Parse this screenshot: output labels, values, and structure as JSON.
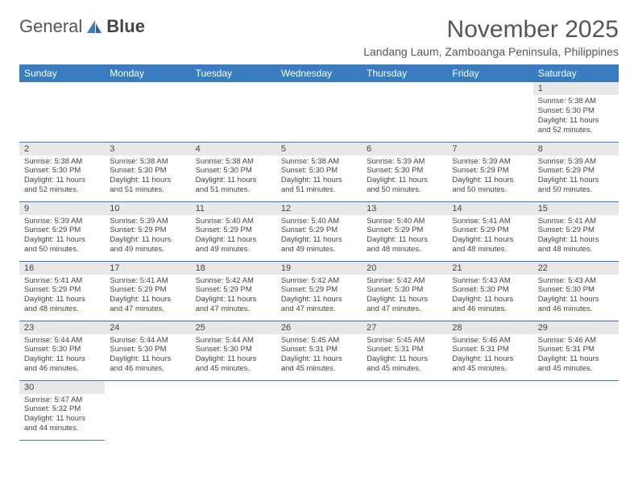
{
  "brand": {
    "part1": "General",
    "part2": "Blue"
  },
  "colors": {
    "header_bg": "#3b7bbf",
    "header_fg": "#ffffff",
    "daynum_bg": "#e8e8e8",
    "rule": "#3b7bbf"
  },
  "title": "November 2025",
  "location": "Landang Laum, Zamboanga Peninsula, Philippines",
  "weekdays": [
    "Sunday",
    "Monday",
    "Tuesday",
    "Wednesday",
    "Thursday",
    "Friday",
    "Saturday"
  ],
  "weeks": [
    [
      null,
      null,
      null,
      null,
      null,
      null,
      {
        "n": "1",
        "sr": "5:38 AM",
        "ss": "5:30 PM",
        "dl": "11 hours and 52 minutes."
      }
    ],
    [
      {
        "n": "2",
        "sr": "5:38 AM",
        "ss": "5:30 PM",
        "dl": "11 hours and 52 minutes."
      },
      {
        "n": "3",
        "sr": "5:38 AM",
        "ss": "5:30 PM",
        "dl": "11 hours and 51 minutes."
      },
      {
        "n": "4",
        "sr": "5:38 AM",
        "ss": "5:30 PM",
        "dl": "11 hours and 51 minutes."
      },
      {
        "n": "5",
        "sr": "5:38 AM",
        "ss": "5:30 PM",
        "dl": "11 hours and 51 minutes."
      },
      {
        "n": "6",
        "sr": "5:39 AM",
        "ss": "5:30 PM",
        "dl": "11 hours and 50 minutes."
      },
      {
        "n": "7",
        "sr": "5:39 AM",
        "ss": "5:29 PM",
        "dl": "11 hours and 50 minutes."
      },
      {
        "n": "8",
        "sr": "5:39 AM",
        "ss": "5:29 PM",
        "dl": "11 hours and 50 minutes."
      }
    ],
    [
      {
        "n": "9",
        "sr": "5:39 AM",
        "ss": "5:29 PM",
        "dl": "11 hours and 50 minutes."
      },
      {
        "n": "10",
        "sr": "5:39 AM",
        "ss": "5:29 PM",
        "dl": "11 hours and 49 minutes."
      },
      {
        "n": "11",
        "sr": "5:40 AM",
        "ss": "5:29 PM",
        "dl": "11 hours and 49 minutes."
      },
      {
        "n": "12",
        "sr": "5:40 AM",
        "ss": "5:29 PM",
        "dl": "11 hours and 49 minutes."
      },
      {
        "n": "13",
        "sr": "5:40 AM",
        "ss": "5:29 PM",
        "dl": "11 hours and 48 minutes."
      },
      {
        "n": "14",
        "sr": "5:41 AM",
        "ss": "5:29 PM",
        "dl": "11 hours and 48 minutes."
      },
      {
        "n": "15",
        "sr": "5:41 AM",
        "ss": "5:29 PM",
        "dl": "11 hours and 48 minutes."
      }
    ],
    [
      {
        "n": "16",
        "sr": "5:41 AM",
        "ss": "5:29 PM",
        "dl": "11 hours and 48 minutes."
      },
      {
        "n": "17",
        "sr": "5:41 AM",
        "ss": "5:29 PM",
        "dl": "11 hours and 47 minutes."
      },
      {
        "n": "18",
        "sr": "5:42 AM",
        "ss": "5:29 PM",
        "dl": "11 hours and 47 minutes."
      },
      {
        "n": "19",
        "sr": "5:42 AM",
        "ss": "5:29 PM",
        "dl": "11 hours and 47 minutes."
      },
      {
        "n": "20",
        "sr": "5:42 AM",
        "ss": "5:30 PM",
        "dl": "11 hours and 47 minutes."
      },
      {
        "n": "21",
        "sr": "5:43 AM",
        "ss": "5:30 PM",
        "dl": "11 hours and 46 minutes."
      },
      {
        "n": "22",
        "sr": "5:43 AM",
        "ss": "5:30 PM",
        "dl": "11 hours and 46 minutes."
      }
    ],
    [
      {
        "n": "23",
        "sr": "5:44 AM",
        "ss": "5:30 PM",
        "dl": "11 hours and 46 minutes."
      },
      {
        "n": "24",
        "sr": "5:44 AM",
        "ss": "5:30 PM",
        "dl": "11 hours and 46 minutes."
      },
      {
        "n": "25",
        "sr": "5:44 AM",
        "ss": "5:30 PM",
        "dl": "11 hours and 45 minutes."
      },
      {
        "n": "26",
        "sr": "5:45 AM",
        "ss": "5:31 PM",
        "dl": "11 hours and 45 minutes."
      },
      {
        "n": "27",
        "sr": "5:45 AM",
        "ss": "5:31 PM",
        "dl": "11 hours and 45 minutes."
      },
      {
        "n": "28",
        "sr": "5:46 AM",
        "ss": "5:31 PM",
        "dl": "11 hours and 45 minutes."
      },
      {
        "n": "29",
        "sr": "5:46 AM",
        "ss": "5:31 PM",
        "dl": "11 hours and 45 minutes."
      }
    ],
    [
      {
        "n": "30",
        "sr": "5:47 AM",
        "ss": "5:32 PM",
        "dl": "11 hours and 44 minutes."
      },
      null,
      null,
      null,
      null,
      null,
      null
    ]
  ],
  "labels": {
    "sunrise": "Sunrise:",
    "sunset": "Sunset:",
    "daylight": "Daylight:"
  }
}
